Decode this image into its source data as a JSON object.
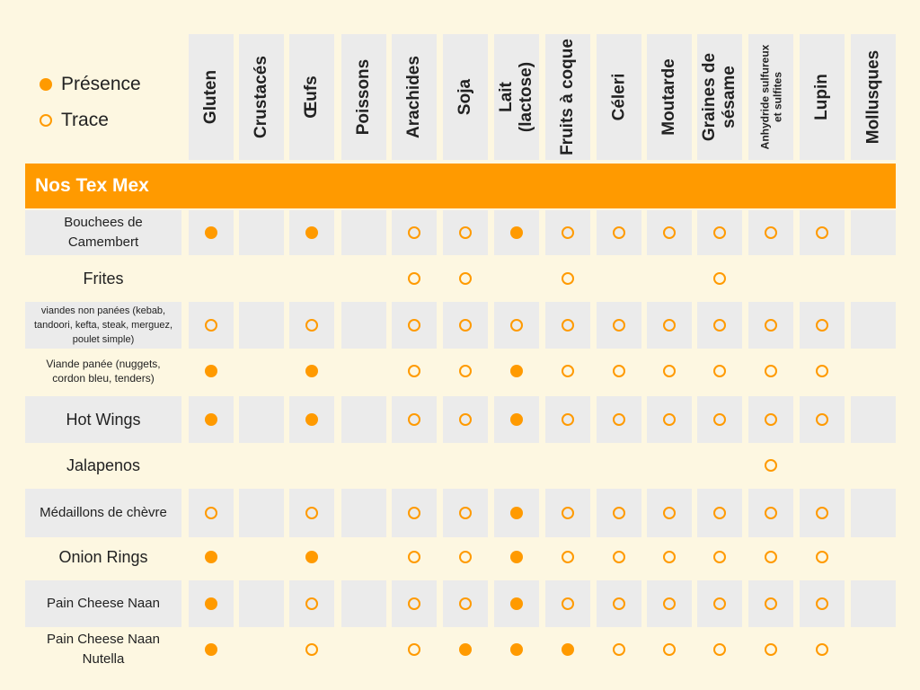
{
  "legend": {
    "presence": "Présence",
    "trace": "Trace"
  },
  "colors": {
    "accent": "#ff9a00",
    "cell_bg": "#ebebeb",
    "page_bg": "#fdf7e1"
  },
  "section": {
    "title": "Nos Tex Mex"
  },
  "allergens": [
    {
      "name": "Gluten"
    },
    {
      "name": "Crustacés"
    },
    {
      "name": "Œufs"
    },
    {
      "name": "Poissons"
    },
    {
      "name": "Arachides"
    },
    {
      "name": "Soja"
    },
    {
      "name": "Lait (lactose)"
    },
    {
      "name": "Fruits à coque"
    },
    {
      "name": "Céleri"
    },
    {
      "name": "Moutarde"
    },
    {
      "name": "Graines de sésame"
    },
    {
      "name": "Anhydride sulfureux et sulfites"
    },
    {
      "name": "Lupin"
    },
    {
      "name": "Mollusques"
    }
  ],
  "rows": [
    {
      "name": "Bouchees de Camembert",
      "cells": [
        "P",
        "",
        "P",
        "",
        "T",
        "T",
        "P",
        "T",
        "T",
        "T",
        "T",
        "T",
        "T",
        ""
      ]
    },
    {
      "name": "Frites",
      "cells": [
        "",
        "",
        "",
        "",
        "T",
        "T",
        "",
        "T",
        "",
        "",
        "T",
        "",
        "",
        ""
      ]
    },
    {
      "name": "viandes non panées (kebab, tandoori, kefta, steak, merguez, poulet simple)",
      "cells": [
        "T",
        "",
        "T",
        "",
        "T",
        "T",
        "T",
        "T",
        "T",
        "T",
        "T",
        "T",
        "T",
        ""
      ]
    },
    {
      "name": "Viande panée (nuggets, cordon bleu, tenders)",
      "cells": [
        "P",
        "",
        "P",
        "",
        "T",
        "T",
        "P",
        "T",
        "T",
        "T",
        "T",
        "T",
        "T",
        ""
      ]
    },
    {
      "name": "Hot Wings",
      "cells": [
        "P",
        "",
        "P",
        "",
        "T",
        "T",
        "P",
        "T",
        "T",
        "T",
        "T",
        "T",
        "T",
        ""
      ]
    },
    {
      "name": "Jalapenos",
      "cells": [
        "",
        "",
        "",
        "",
        "",
        "",
        "",
        "",
        "",
        "",
        "",
        "T",
        "",
        ""
      ]
    },
    {
      "name": "Médaillons de chèvre",
      "cells": [
        "T",
        "",
        "T",
        "",
        "T",
        "T",
        "P",
        "T",
        "T",
        "T",
        "T",
        "T",
        "T",
        ""
      ]
    },
    {
      "name": "Onion Rings",
      "cells": [
        "P",
        "",
        "P",
        "",
        "T",
        "T",
        "P",
        "T",
        "T",
        "T",
        "T",
        "T",
        "T",
        ""
      ]
    },
    {
      "name": "Pain Cheese Naan",
      "cells": [
        "P",
        "",
        "T",
        "",
        "T",
        "T",
        "P",
        "T",
        "T",
        "T",
        "T",
        "T",
        "T",
        ""
      ]
    },
    {
      "name": "Pain Cheese Naan Nutella",
      "cells": [
        "P",
        "",
        "T",
        "",
        "T",
        "P",
        "P",
        "P",
        "T",
        "T",
        "T",
        "T",
        "T",
        ""
      ]
    }
  ]
}
